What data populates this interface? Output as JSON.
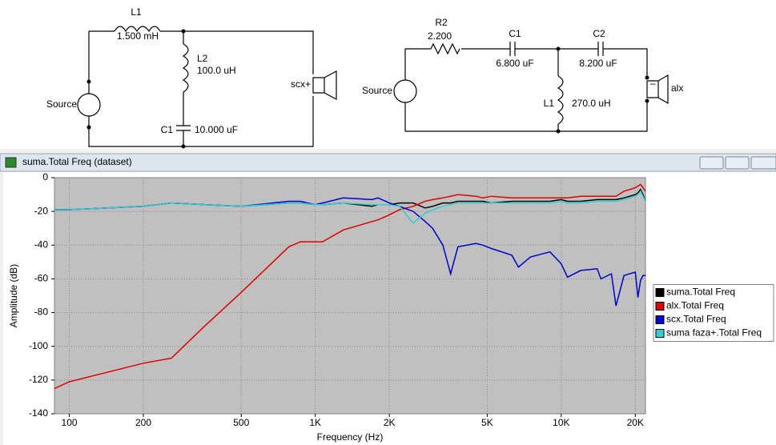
{
  "circuit_left": {
    "components": [
      {
        "name": "L1",
        "value": "1.500 mH"
      },
      {
        "name": "L2",
        "value": "100.0 uH"
      },
      {
        "name": "C1",
        "value": "10.000 uF"
      }
    ],
    "source": "Source",
    "speaker": "scx+"
  },
  "circuit_right": {
    "components": [
      {
        "name": "R2",
        "value": "2.200"
      },
      {
        "name": "C1",
        "value": "6.800 uF"
      },
      {
        "name": "C2",
        "value": "8.200 uF"
      },
      {
        "name": "L1",
        "value": "270.0 uH"
      }
    ],
    "source": "Source",
    "speaker_polarity": "–",
    "speaker": "alx"
  },
  "window": {
    "title": "suma.Total Freq (dataset)"
  },
  "chart_data": {
    "type": "line",
    "x_label": "Frequency (Hz)",
    "y_label": "Amplitude (dB)",
    "log_x": true,
    "grid": true,
    "legend": "right",
    "background": "#c0c0c0",
    "xlim": [
      87,
      22000
    ],
    "ylim": [
      -140,
      0
    ],
    "xticks": [
      100,
      200,
      500,
      {
        "value": 1000,
        "label": "1K"
      },
      {
        "value": 2000,
        "label": "2K"
      },
      {
        "value": 5000,
        "label": "5K"
      },
      {
        "value": 10000,
        "label": "10K"
      },
      {
        "value": 20000,
        "label": "20K"
      }
    ],
    "yticks": [
      0,
      -20,
      -40,
      -60,
      -80,
      -100,
      -120,
      -140
    ],
    "x": [
      87,
      100,
      200,
      260,
      355,
      500,
      780,
      870,
      1000,
      1070,
      1300,
      1700,
      1800,
      2000,
      2200,
      2500,
      2800,
      3000,
      3300,
      3550,
      3800,
      4500,
      4800,
      5200,
      6300,
      6700,
      7500,
      9000,
      10000,
      10600,
      12000,
      14000,
      14500,
      16000,
      16700,
      18000,
      20000,
      20500,
      21000,
      21500,
      22000
    ],
    "series": [
      {
        "name": "suma.Total Freq",
        "color": "#000000",
        "values": [
          -19,
          -19,
          -17,
          -15,
          -16,
          -17,
          -15,
          -15,
          -16,
          -16,
          -15,
          -17,
          -16,
          -16,
          -15,
          -15,
          -18,
          -17,
          -15,
          -15,
          -14,
          -14,
          -14,
          -15,
          -14,
          -14,
          -14,
          -14,
          -13,
          -14,
          -14,
          -13,
          -13,
          -13,
          -13,
          -12,
          -10,
          -9,
          -7,
          -10,
          -14
        ]
      },
      {
        "name": "alx.Total Freq",
        "color": "#e00000",
        "values": [
          -125,
          -121,
          -110,
          -107,
          -88,
          -68,
          -41,
          -38,
          -38,
          -38,
          -31,
          -26,
          -25,
          -22,
          -19,
          -17,
          -14,
          -13,
          -12,
          -11,
          -10,
          -11,
          -12,
          -11,
          -12,
          -12,
          -12,
          -12,
          -12,
          -12,
          -11,
          -11,
          -11,
          -11,
          -11,
          -8,
          -6,
          -5,
          -4,
          -6,
          -8
        ]
      },
      {
        "name": "scx.Total Freq",
        "color": "#0000d0",
        "values": [
          -19,
          -19,
          -17,
          -15,
          -16,
          -17,
          -14,
          -14,
          -16,
          -15,
          -12,
          -13,
          -12,
          -15,
          -17,
          -20,
          -26,
          -30,
          -40,
          -57,
          -41,
          -39,
          -40,
          -42,
          -46,
          -53,
          -47,
          -44,
          -51,
          -59,
          -55,
          -54,
          -60,
          -57,
          -76,
          -58,
          -56,
          -71,
          -61,
          -58,
          -58
        ]
      },
      {
        "name": "suma faza+.Total Freq",
        "color": "#30d0d0",
        "values": [
          -19,
          -19,
          -17,
          -15,
          -16,
          -17,
          -15,
          -15,
          -16,
          -16,
          -15,
          -16,
          -16,
          -16,
          -17,
          -27,
          -21,
          -19,
          -17,
          -16,
          -15,
          -15,
          -15,
          -15,
          -15,
          -15,
          -15,
          -15,
          -14,
          -15,
          -15,
          -14,
          -14,
          -14,
          -14,
          -13,
          -11,
          -10,
          -8,
          -11,
          -14
        ]
      }
    ]
  }
}
